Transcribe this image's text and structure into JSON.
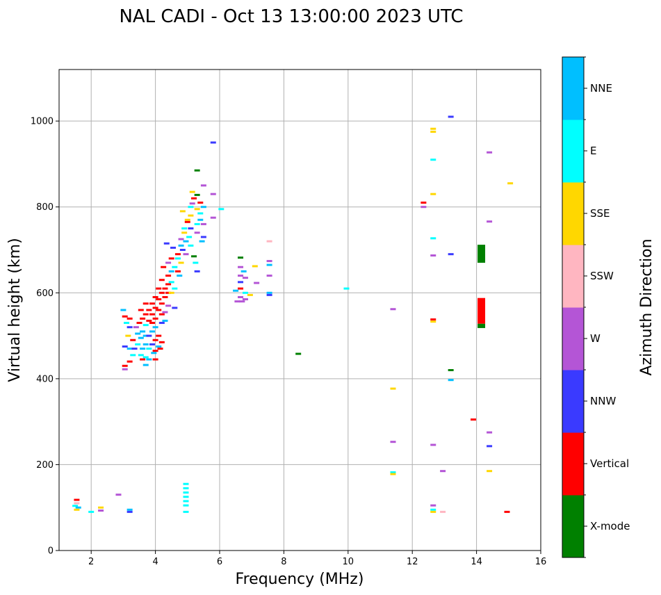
{
  "chart_data": {
    "type": "scatter",
    "title": "NAL CADI - Oct 13 13:00:00 2023 UTC",
    "xlabel": "Frequency (MHz)",
    "ylabel": "Virtual height (km)",
    "xlim": [
      1,
      16
    ],
    "ylim": [
      0,
      1120
    ],
    "xticks": [
      2,
      4,
      6,
      8,
      10,
      12,
      14,
      16
    ],
    "yticks": [
      0,
      200,
      400,
      600,
      800,
      1000
    ],
    "grid": true,
    "colorbar": {
      "label": "Azimuth Direction",
      "categories": [
        {
          "name": "X-mode",
          "color": "#008000"
        },
        {
          "name": "Vertical",
          "color": "#ff0000"
        },
        {
          "name": "NNW",
          "color": "#3a3aff"
        },
        {
          "name": "W",
          "color": "#b455d6"
        },
        {
          "name": "SSW",
          "color": "#ffb6c1"
        },
        {
          "name": "SSE",
          "color": "#ffd700"
        },
        {
          "name": "E",
          "color": "#00ffff"
        },
        {
          "name": "NNE",
          "color": "#00bfff"
        }
      ]
    },
    "echoes": [
      {
        "f": 1.55,
        "h": 118,
        "d": "Vertical"
      },
      {
        "f": 1.55,
        "h": 110,
        "d": "SSW"
      },
      {
        "f": 1.5,
        "h": 104,
        "d": "E"
      },
      {
        "f": 1.6,
        "h": 100,
        "d": "NNE"
      },
      {
        "f": 1.55,
        "h": 95,
        "d": "SSE"
      },
      {
        "f": 2.0,
        "h": 90,
        "d": "E"
      },
      {
        "f": 2.3,
        "h": 100,
        "d": "SSE"
      },
      {
        "f": 2.3,
        "h": 93,
        "d": "W"
      },
      {
        "f": 2.85,
        "h": 130,
        "d": "W"
      },
      {
        "f": 3.2,
        "h": 95,
        "d": "NNE"
      },
      {
        "f": 3.2,
        "h": 90,
        "d": "NNW"
      },
      {
        "f": 4.95,
        "h": 155,
        "d": "E"
      },
      {
        "f": 4.95,
        "h": 145,
        "d": "E"
      },
      {
        "f": 4.95,
        "h": 135,
        "d": "E"
      },
      {
        "f": 4.95,
        "h": 125,
        "d": "E"
      },
      {
        "f": 4.95,
        "h": 115,
        "d": "E"
      },
      {
        "f": 4.95,
        "h": 105,
        "d": "E"
      },
      {
        "f": 4.95,
        "h": 90,
        "d": "E"
      },
      {
        "f": 3.0,
        "h": 560,
        "d": "NNE"
      },
      {
        "f": 3.05,
        "h": 545,
        "d": "Vertical"
      },
      {
        "f": 3.1,
        "h": 530,
        "d": "E"
      },
      {
        "f": 3.05,
        "h": 475,
        "d": "NNW"
      },
      {
        "f": 3.05,
        "h": 430,
        "d": "Vertical"
      },
      {
        "f": 3.05,
        "h": 422,
        "d": "W"
      },
      {
        "f": 3.15,
        "h": 500,
        "d": "SSE"
      },
      {
        "f": 3.2,
        "h": 540,
        "d": "Vertical"
      },
      {
        "f": 3.2,
        "h": 520,
        "d": "NNW"
      },
      {
        "f": 3.2,
        "h": 470,
        "d": "NNE"
      },
      {
        "f": 3.2,
        "h": 440,
        "d": "Vertical"
      },
      {
        "f": 3.3,
        "h": 455,
        "d": "E"
      },
      {
        "f": 3.3,
        "h": 490,
        "d": "Vertical"
      },
      {
        "f": 3.35,
        "h": 470,
        "d": "NNW"
      },
      {
        "f": 3.4,
        "h": 520,
        "d": "W"
      },
      {
        "f": 3.45,
        "h": 505,
        "d": "NNE"
      },
      {
        "f": 3.45,
        "h": 480,
        "d": "E"
      },
      {
        "f": 3.5,
        "h": 530,
        "d": "Vertical"
      },
      {
        "f": 3.55,
        "h": 560,
        "d": "Vertical"
      },
      {
        "f": 3.55,
        "h": 495,
        "d": "NNE"
      },
      {
        "f": 3.55,
        "h": 455,
        "d": "E"
      },
      {
        "f": 3.6,
        "h": 540,
        "d": "Vertical"
      },
      {
        "f": 3.6,
        "h": 510,
        "d": "NNE"
      },
      {
        "f": 3.6,
        "h": 470,
        "d": "NNE"
      },
      {
        "f": 3.6,
        "h": 445,
        "d": "Vertical"
      },
      {
        "f": 3.7,
        "h": 575,
        "d": "Vertical"
      },
      {
        "f": 3.7,
        "h": 550,
        "d": "Vertical"
      },
      {
        "f": 3.7,
        "h": 525,
        "d": "E"
      },
      {
        "f": 3.7,
        "h": 500,
        "d": "NNE"
      },
      {
        "f": 3.7,
        "h": 480,
        "d": "NNE"
      },
      {
        "f": 3.7,
        "h": 450,
        "d": "E"
      },
      {
        "f": 3.7,
        "h": 432,
        "d": "NNE"
      },
      {
        "f": 3.8,
        "h": 560,
        "d": "Vertical"
      },
      {
        "f": 3.8,
        "h": 535,
        "d": "Vertical"
      },
      {
        "f": 3.8,
        "h": 500,
        "d": "NNW"
      },
      {
        "f": 3.8,
        "h": 470,
        "d": "E"
      },
      {
        "f": 3.8,
        "h": 445,
        "d": "NNE"
      },
      {
        "f": 3.9,
        "h": 575,
        "d": "Vertical"
      },
      {
        "f": 3.9,
        "h": 550,
        "d": "Vertical"
      },
      {
        "f": 3.9,
        "h": 530,
        "d": "Vertical"
      },
      {
        "f": 3.9,
        "h": 510,
        "d": "NNE"
      },
      {
        "f": 3.9,
        "h": 480,
        "d": "NNW"
      },
      {
        "f": 3.95,
        "h": 460,
        "d": "NNE"
      },
      {
        "f": 4.0,
        "h": 590,
        "d": "Vertical"
      },
      {
        "f": 4.0,
        "h": 565,
        "d": "Vertical"
      },
      {
        "f": 4.0,
        "h": 540,
        "d": "Vertical"
      },
      {
        "f": 4.0,
        "h": 520,
        "d": "NNE"
      },
      {
        "f": 4.0,
        "h": 490,
        "d": "Vertical"
      },
      {
        "f": 4.0,
        "h": 465,
        "d": "Vertical"
      },
      {
        "f": 4.0,
        "h": 445,
        "d": "Vertical"
      },
      {
        "f": 4.1,
        "h": 610,
        "d": "Vertical"
      },
      {
        "f": 4.1,
        "h": 585,
        "d": "Vertical"
      },
      {
        "f": 4.1,
        "h": 560,
        "d": "Vertical"
      },
      {
        "f": 4.1,
        "h": 500,
        "d": "Vertical"
      },
      {
        "f": 4.1,
        "h": 475,
        "d": "NNE"
      },
      {
        "f": 4.15,
        "h": 470,
        "d": "Vertical"
      },
      {
        "f": 4.2,
        "h": 630,
        "d": "Vertical"
      },
      {
        "f": 4.2,
        "h": 600,
        "d": "Vertical"
      },
      {
        "f": 4.2,
        "h": 575,
        "d": "Vertical"
      },
      {
        "f": 4.2,
        "h": 550,
        "d": "Vertical"
      },
      {
        "f": 4.2,
        "h": 530,
        "d": "NNW"
      },
      {
        "f": 4.2,
        "h": 485,
        "d": "Vertical"
      },
      {
        "f": 4.25,
        "h": 660,
        "d": "Vertical"
      },
      {
        "f": 4.3,
        "h": 610,
        "d": "Vertical"
      },
      {
        "f": 4.3,
        "h": 590,
        "d": "Vertical"
      },
      {
        "f": 4.3,
        "h": 555,
        "d": "W"
      },
      {
        "f": 4.3,
        "h": 535,
        "d": "NNE"
      },
      {
        "f": 4.35,
        "h": 715,
        "d": "NNW"
      },
      {
        "f": 4.4,
        "h": 670,
        "d": "W"
      },
      {
        "f": 4.4,
        "h": 640,
        "d": "Vertical"
      },
      {
        "f": 4.4,
        "h": 620,
        "d": "Vertical"
      },
      {
        "f": 4.4,
        "h": 600,
        "d": "Vertical"
      },
      {
        "f": 4.4,
        "h": 570,
        "d": "W"
      },
      {
        "f": 4.5,
        "h": 680,
        "d": "Vertical"
      },
      {
        "f": 4.5,
        "h": 650,
        "d": "NNE"
      },
      {
        "f": 4.5,
        "h": 625,
        "d": "E"
      },
      {
        "f": 4.5,
        "h": 600,
        "d": "SSE"
      },
      {
        "f": 4.55,
        "h": 705,
        "d": "NNW"
      },
      {
        "f": 4.6,
        "h": 660,
        "d": "E"
      },
      {
        "f": 4.6,
        "h": 610,
        "d": "E"
      },
      {
        "f": 4.6,
        "h": 565,
        "d": "NNW"
      },
      {
        "f": 4.7,
        "h": 690,
        "d": "Vertical"
      },
      {
        "f": 4.7,
        "h": 680,
        "d": "E"
      },
      {
        "f": 4.7,
        "h": 650,
        "d": "Vertical"
      },
      {
        "f": 4.75,
        "h": 640,
        "d": "NNE"
      },
      {
        "f": 4.8,
        "h": 725,
        "d": "W"
      },
      {
        "f": 4.8,
        "h": 710,
        "d": "NNE"
      },
      {
        "f": 4.8,
        "h": 670,
        "d": "SSE"
      },
      {
        "f": 4.85,
        "h": 700,
        "d": "NNW"
      },
      {
        "f": 4.85,
        "h": 790,
        "d": "SSE"
      },
      {
        "f": 4.9,
        "h": 750,
        "d": "E"
      },
      {
        "f": 4.9,
        "h": 740,
        "d": "SSE"
      },
      {
        "f": 4.95,
        "h": 720,
        "d": "NNE"
      },
      {
        "f": 4.95,
        "h": 690,
        "d": "W"
      },
      {
        "f": 5.0,
        "h": 770,
        "d": "SSE"
      },
      {
        "f": 5.0,
        "h": 765,
        "d": "Vertical"
      },
      {
        "f": 5.05,
        "h": 730,
        "d": "E"
      },
      {
        "f": 5.1,
        "h": 800,
        "d": "E"
      },
      {
        "f": 5.1,
        "h": 780,
        "d": "SSE"
      },
      {
        "f": 5.1,
        "h": 750,
        "d": "NNW"
      },
      {
        "f": 5.1,
        "h": 710,
        "d": "E"
      },
      {
        "f": 5.15,
        "h": 835,
        "d": "SSE"
      },
      {
        "f": 5.15,
        "h": 808,
        "d": "W"
      },
      {
        "f": 5.2,
        "h": 820,
        "d": "Vertical"
      },
      {
        "f": 5.2,
        "h": 685,
        "d": "X-mode"
      },
      {
        "f": 5.25,
        "h": 670,
        "d": "E"
      },
      {
        "f": 5.3,
        "h": 885,
        "d": "X-mode"
      },
      {
        "f": 5.3,
        "h": 828,
        "d": "X-mode"
      },
      {
        "f": 5.3,
        "h": 795,
        "d": "SSE"
      },
      {
        "f": 5.3,
        "h": 760,
        "d": "E"
      },
      {
        "f": 5.3,
        "h": 740,
        "d": "W"
      },
      {
        "f": 5.3,
        "h": 650,
        "d": "NNW"
      },
      {
        "f": 5.4,
        "h": 810,
        "d": "Vertical"
      },
      {
        "f": 5.4,
        "h": 785,
        "d": "E"
      },
      {
        "f": 5.4,
        "h": 770,
        "d": "NNE"
      },
      {
        "f": 5.45,
        "h": 720,
        "d": "NNE"
      },
      {
        "f": 5.5,
        "h": 850,
        "d": "W"
      },
      {
        "f": 5.5,
        "h": 800,
        "d": "NNE"
      },
      {
        "f": 5.5,
        "h": 760,
        "d": "W"
      },
      {
        "f": 5.5,
        "h": 730,
        "d": "NNW"
      },
      {
        "f": 5.8,
        "h": 950,
        "d": "NNW"
      },
      {
        "f": 5.8,
        "h": 830,
        "d": "W"
      },
      {
        "f": 5.8,
        "h": 775,
        "d": "W"
      },
      {
        "f": 6.05,
        "h": 795,
        "d": "E"
      },
      {
        "f": 6.5,
        "h": 605,
        "d": "NNE"
      },
      {
        "f": 6.55,
        "h": 580,
        "d": "W"
      },
      {
        "f": 6.65,
        "h": 682,
        "d": "X-mode"
      },
      {
        "f": 6.65,
        "h": 660,
        "d": "W"
      },
      {
        "f": 6.65,
        "h": 640,
        "d": "W"
      },
      {
        "f": 6.65,
        "h": 625,
        "d": "NNW"
      },
      {
        "f": 6.65,
        "h": 610,
        "d": "Vertical"
      },
      {
        "f": 6.65,
        "h": 590,
        "d": "W"
      },
      {
        "f": 6.7,
        "h": 580,
        "d": "W"
      },
      {
        "f": 6.75,
        "h": 650,
        "d": "NNE"
      },
      {
        "f": 6.8,
        "h": 635,
        "d": "W"
      },
      {
        "f": 6.8,
        "h": 600,
        "d": "E"
      },
      {
        "f": 6.8,
        "h": 585,
        "d": "W"
      },
      {
        "f": 6.95,
        "h": 595,
        "d": "SSE"
      },
      {
        "f": 7.1,
        "h": 662,
        "d": "SSE"
      },
      {
        "f": 7.15,
        "h": 623,
        "d": "W"
      },
      {
        "f": 7.55,
        "h": 720,
        "d": "SSW"
      },
      {
        "f": 7.55,
        "h": 674,
        "d": "W"
      },
      {
        "f": 7.55,
        "h": 665,
        "d": "NNE"
      },
      {
        "f": 7.55,
        "h": 640,
        "d": "W"
      },
      {
        "f": 7.55,
        "h": 600,
        "d": "NNE"
      },
      {
        "f": 7.55,
        "h": 595,
        "d": "NNW"
      },
      {
        "f": 8.45,
        "h": 458,
        "d": "X-mode"
      },
      {
        "f": 9.95,
        "h": 610,
        "d": "E"
      },
      {
        "f": 11.4,
        "h": 562,
        "d": "W"
      },
      {
        "f": 11.4,
        "h": 377,
        "d": "SSE"
      },
      {
        "f": 11.4,
        "h": 253,
        "d": "W"
      },
      {
        "f": 11.4,
        "h": 182,
        "d": "E"
      },
      {
        "f": 11.4,
        "h": 178,
        "d": "SSE"
      },
      {
        "f": 12.35,
        "h": 810,
        "d": "Vertical"
      },
      {
        "f": 12.35,
        "h": 800,
        "d": "W"
      },
      {
        "f": 12.65,
        "h": 982,
        "d": "SSE"
      },
      {
        "f": 12.65,
        "h": 975,
        "d": "SSE"
      },
      {
        "f": 12.65,
        "h": 910,
        "d": "E"
      },
      {
        "f": 12.65,
        "h": 830,
        "d": "SSE"
      },
      {
        "f": 12.65,
        "h": 727,
        "d": "E"
      },
      {
        "f": 12.65,
        "h": 687,
        "d": "W"
      },
      {
        "f": 12.65,
        "h": 538,
        "d": "Vertical"
      },
      {
        "f": 12.65,
        "h": 533,
        "d": "SSE"
      },
      {
        "f": 12.65,
        "h": 246,
        "d": "W"
      },
      {
        "f": 12.65,
        "h": 105,
        "d": "W"
      },
      {
        "f": 12.65,
        "h": 95,
        "d": "E"
      },
      {
        "f": 12.65,
        "h": 90,
        "d": "SSE"
      },
      {
        "f": 12.95,
        "h": 90,
        "d": "SSW"
      },
      {
        "f": 12.95,
        "h": 185,
        "d": "W"
      },
      {
        "f": 13.2,
        "h": 1010,
        "d": "NNW"
      },
      {
        "f": 13.2,
        "h": 690,
        "d": "NNW"
      },
      {
        "f": 13.2,
        "h": 420,
        "d": "X-mode"
      },
      {
        "f": 13.2,
        "h": 397,
        "d": "NNE"
      },
      {
        "f": 13.9,
        "h": 305,
        "d": "Vertical"
      },
      {
        "f": 14.4,
        "h": 927,
        "d": "W"
      },
      {
        "f": 14.4,
        "h": 766,
        "d": "W"
      },
      {
        "f": 14.4,
        "h": 275,
        "d": "W"
      },
      {
        "f": 14.4,
        "h": 243,
        "d": "NNW"
      },
      {
        "f": 14.4,
        "h": 185,
        "d": "SSE"
      },
      {
        "f": 15.05,
        "h": 855,
        "d": "SSE"
      },
      {
        "f": 14.95,
        "h": 90,
        "d": "Vertical"
      }
    ],
    "bands": [
      {
        "f": 14.15,
        "h0": 670,
        "h1": 712,
        "d": "X-mode"
      },
      {
        "f": 14.15,
        "h0": 528,
        "h1": 588,
        "d": "Vertical"
      },
      {
        "f": 14.15,
        "h0": 518,
        "h1": 528,
        "d": "X-mode"
      }
    ]
  }
}
